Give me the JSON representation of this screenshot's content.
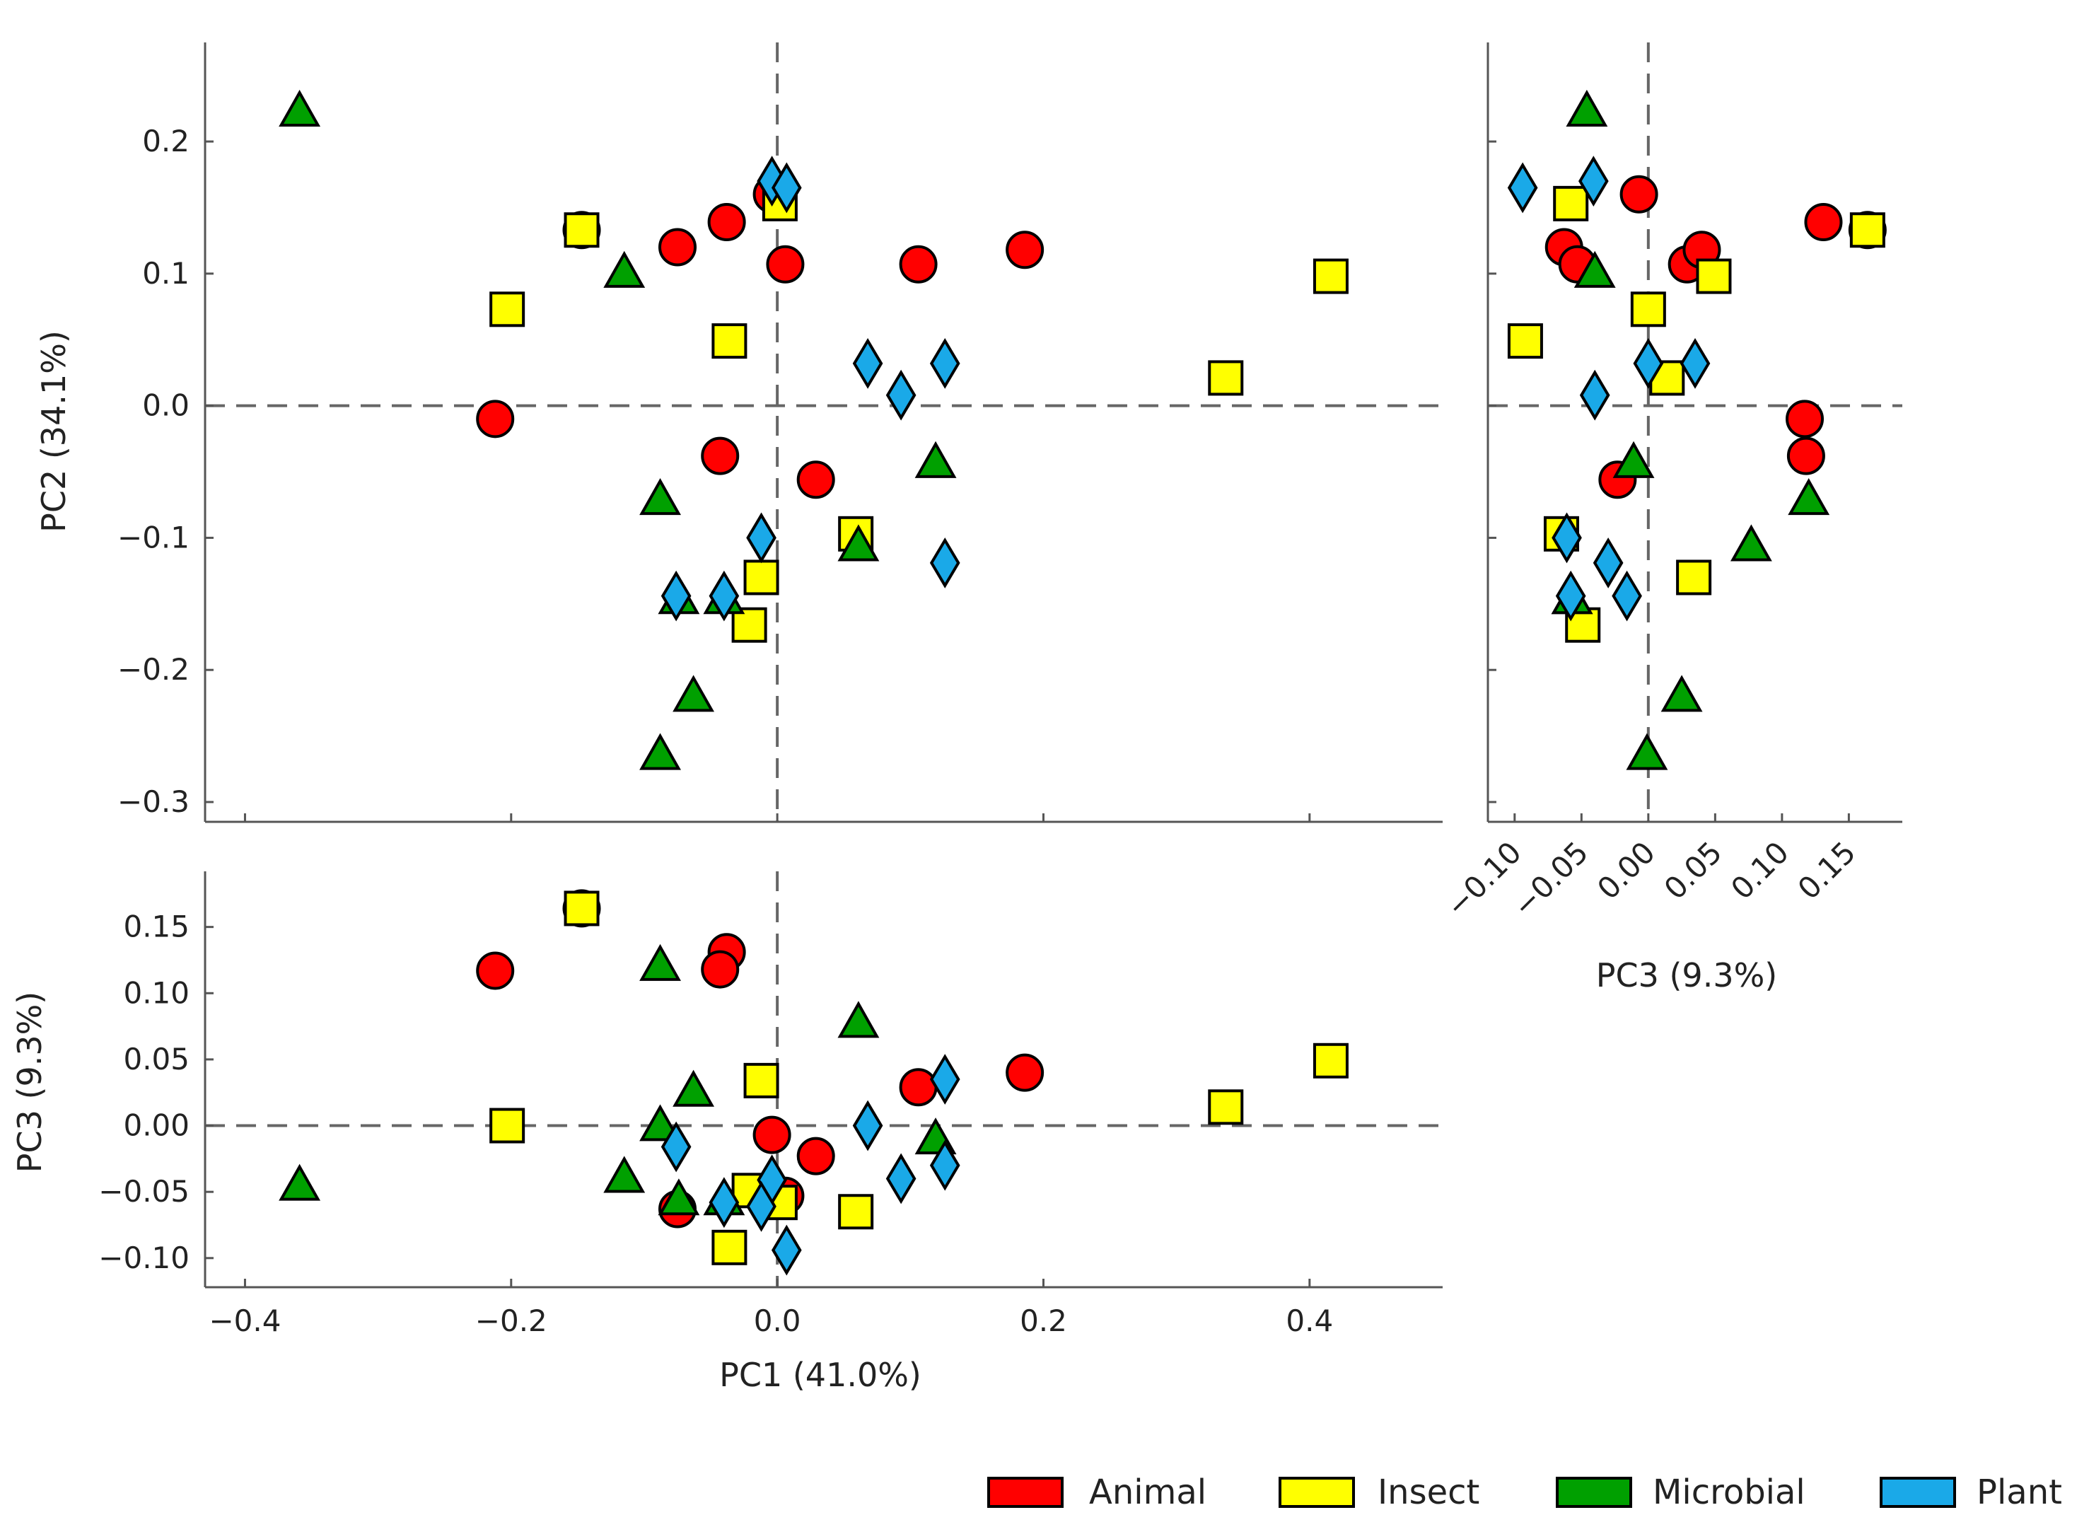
{
  "chart_data": {
    "type": "scatter",
    "series": [
      {
        "name": "Animal",
        "color": "#ff0000",
        "marker": "circle",
        "points": [
          {
            "pc1": -0.212,
            "pc2": -0.01,
            "pc3": 0.117
          },
          {
            "pc1": -0.147,
            "pc2": 0.133,
            "pc3": 0.164
          },
          {
            "pc1": -0.075,
            "pc2": 0.12,
            "pc3": -0.063
          },
          {
            "pc1": -0.038,
            "pc2": 0.139,
            "pc3": 0.131
          },
          {
            "pc1": -0.043,
            "pc2": -0.038,
            "pc3": 0.118
          },
          {
            "pc1": -0.004,
            "pc2": 0.16,
            "pc3": -0.007
          },
          {
            "pc1": 0.006,
            "pc2": 0.107,
            "pc3": -0.053
          },
          {
            "pc1": 0.029,
            "pc2": -0.056,
            "pc3": -0.023
          },
          {
            "pc1": 0.106,
            "pc2": 0.107,
            "pc3": 0.029
          },
          {
            "pc1": 0.186,
            "pc2": 0.118,
            "pc3": 0.04
          }
        ]
      },
      {
        "name": "Insect",
        "color": "#ffff00",
        "marker": "square",
        "points": [
          {
            "pc1": -0.203,
            "pc2": 0.073,
            "pc3": 0.0
          },
          {
            "pc1": -0.147,
            "pc2": 0.133,
            "pc3": 0.164
          },
          {
            "pc1": -0.036,
            "pc2": 0.049,
            "pc3": -0.092
          },
          {
            "pc1": 0.002,
            "pc2": 0.153,
            "pc3": -0.058
          },
          {
            "pc1": -0.012,
            "pc2": -0.13,
            "pc3": 0.034
          },
          {
            "pc1": -0.021,
            "pc2": -0.166,
            "pc3": -0.049
          },
          {
            "pc1": 0.059,
            "pc2": -0.097,
            "pc3": -0.065
          },
          {
            "pc1": 0.337,
            "pc2": 0.021,
            "pc3": 0.014
          },
          {
            "pc1": 0.416,
            "pc2": 0.098,
            "pc3": 0.049
          }
        ]
      },
      {
        "name": "Microbial",
        "color": "#00a000",
        "marker": "triangle",
        "points": [
          {
            "pc1": -0.359,
            "pc2": 0.222,
            "pc3": -0.046
          },
          {
            "pc1": -0.115,
            "pc2": 0.1,
            "pc3": -0.04
          },
          {
            "pc1": -0.088,
            "pc2": -0.072,
            "pc3": 0.12
          },
          {
            "pc1": -0.088,
            "pc2": -0.265,
            "pc3": -0.001
          },
          {
            "pc1": -0.063,
            "pc2": -0.221,
            "pc3": 0.025
          },
          {
            "pc1": -0.074,
            "pc2": -0.147,
            "pc3": -0.057
          },
          {
            "pc1": -0.04,
            "pc2": -0.147,
            "pc3": -0.057
          },
          {
            "pc1": 0.061,
            "pc2": -0.107,
            "pc3": 0.077
          },
          {
            "pc1": 0.119,
            "pc2": -0.044,
            "pc3": -0.011
          }
        ]
      },
      {
        "name": "Plant",
        "color": "#1aa9e8",
        "marker": "diamond",
        "points": [
          {
            "pc1": -0.004,
            "pc2": 0.17,
            "pc3": -0.041
          },
          {
            "pc1": 0.007,
            "pc2": 0.165,
            "pc3": -0.094
          },
          {
            "pc1": 0.068,
            "pc2": 0.032,
            "pc3": 0.0
          },
          {
            "pc1": 0.093,
            "pc2": 0.008,
            "pc3": -0.04
          },
          {
            "pc1": 0.126,
            "pc2": 0.032,
            "pc3": 0.035
          },
          {
            "pc1": 0.126,
            "pc2": -0.119,
            "pc3": -0.03
          },
          {
            "pc1": -0.012,
            "pc2": -0.1,
            "pc3": -0.061
          },
          {
            "pc1": -0.076,
            "pc2": -0.144,
            "pc3": -0.016
          },
          {
            "pc1": -0.04,
            "pc2": -0.144,
            "pc3": -0.058
          }
        ]
      }
    ],
    "panels": [
      {
        "id": "pc1_pc2",
        "x": "pc1",
        "y": "pc2",
        "xlim": [
          -0.43,
          0.5
        ],
        "ylim": [
          -0.315,
          0.275
        ],
        "xticks": [],
        "xticklabels": [],
        "yticks": [
          0.2,
          0.1,
          0.0,
          -0.1,
          -0.2,
          -0.3
        ],
        "yticklabels": [
          "0.2",
          "0.1",
          "0.0",
          "−0.1",
          "−0.2",
          "−0.3"
        ],
        "xtickmarks": [
          -0.4,
          -0.2,
          0.0,
          0.2,
          0.4
        ],
        "ylabel": "PC2 (34.1%)",
        "xlabel": ""
      },
      {
        "id": "pc3_pc2",
        "x": "pc3",
        "y": "pc2",
        "xlim": [
          -0.12,
          0.19
        ],
        "ylim": [
          -0.315,
          0.275
        ],
        "xticks": [
          -0.1,
          -0.05,
          0.0,
          0.05,
          0.1,
          0.15
        ],
        "xticklabels": [
          "−0.10",
          "−0.05",
          "0.00",
          "0.05",
          "0.10",
          "0.15"
        ],
        "xtickmarks": [
          -0.1,
          -0.05,
          0.0,
          0.05,
          0.1,
          0.15
        ],
        "yticks": [],
        "yticklabels": [],
        "ytickmarks": [
          0.2,
          0.1,
          0.0,
          -0.1,
          -0.2,
          -0.3
        ],
        "xlabel": "PC3 (9.3%)",
        "ylabel": "",
        "rotated_xticks": true
      },
      {
        "id": "pc1_pc3",
        "x": "pc1",
        "y": "pc3",
        "xlim": [
          -0.43,
          0.5
        ],
        "ylim": [
          -0.122,
          0.192
        ],
        "xticks": [
          -0.4,
          -0.2,
          0.0,
          0.2,
          0.4
        ],
        "xticklabels": [
          "−0.4",
          "−0.2",
          "0.0",
          "0.2",
          "0.4"
        ],
        "xtickmarks": [
          -0.4,
          -0.2,
          0.0,
          0.2,
          0.4
        ],
        "yticks": [
          0.15,
          0.1,
          0.05,
          0.0,
          -0.05,
          -0.1
        ],
        "yticklabels": [
          "0.15",
          "0.10",
          "0.05",
          "0.00",
          "−0.05",
          "−0.10"
        ],
        "xlabel": "PC1 (41.0%)",
        "ylabel": "PC3 (9.3%)"
      }
    ],
    "zero_lines": "dashed at 0 on both axes",
    "grid": false,
    "legend": {
      "position": "bottom-right",
      "orientation": "horizontal",
      "entries": [
        "Animal",
        "Insect",
        "Microbial",
        "Plant"
      ]
    }
  }
}
